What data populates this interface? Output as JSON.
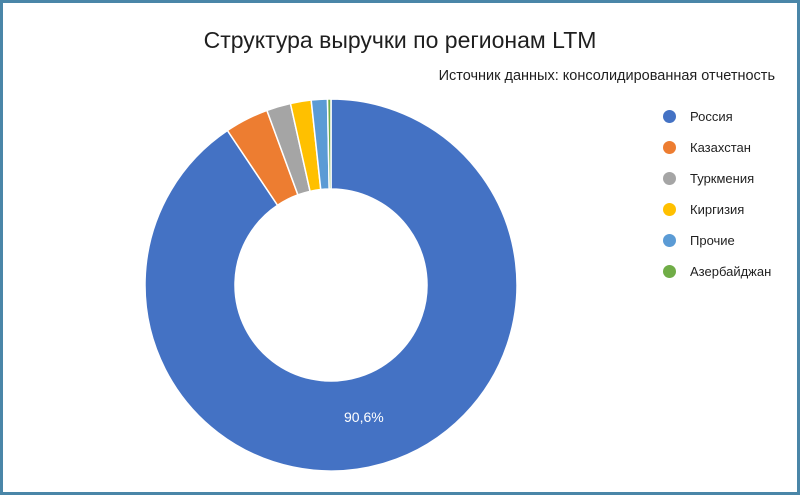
{
  "chart_data": {
    "type": "pie",
    "variant": "donut",
    "title": "Структура выручки по регионам LTM",
    "subtitle": "Источник данных: консолидированная отчетность",
    "categories": [
      "Россия",
      "Казахстан",
      "Туркмения",
      "Киргизия",
      "Прочие",
      "Азербайджан"
    ],
    "values": [
      90.6,
      3.8,
      2.1,
      1.8,
      1.4,
      0.3
    ],
    "colors": [
      "#4472c4",
      "#ed7d31",
      "#a5a5a5",
      "#ffc000",
      "#5b9bd5",
      "#70ad47"
    ],
    "data_labels": [
      "90,6%",
      "",
      "",
      "",
      "",
      ""
    ],
    "legend_position": "right"
  }
}
